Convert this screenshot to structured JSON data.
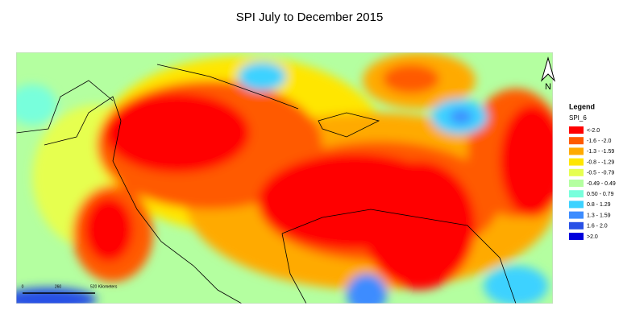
{
  "title": "SPI July to  December 2015",
  "legend": {
    "heading": "Legend",
    "field": "SPI_6",
    "items": [
      {
        "label": "<-2.0",
        "color": "#ff0000"
      },
      {
        "label": "-1.6 - -2.0",
        "color": "#ff5a00"
      },
      {
        "label": "-1.3 - -1.59",
        "color": "#ffaa00"
      },
      {
        "label": "-0.8 - -1.29",
        "color": "#ffe600"
      },
      {
        "label": "-0.5 - -0.79",
        "color": "#e6ff50"
      },
      {
        "label": "-0.49 - 0.49",
        "color": "#b4ffa0"
      },
      {
        "label": "0.50 - 0.79",
        "color": "#78ffdc"
      },
      {
        "label": "0.8 - 1.29",
        "color": "#3cd2ff"
      },
      {
        "label": "1.3 - 1.59",
        "color": "#3c8cff"
      },
      {
        "label": "1.6 - 2.0",
        "color": "#2850e6"
      },
      {
        "label": ">2.0",
        "color": "#0000dc"
      }
    ]
  },
  "scale_bar": {
    "labels": [
      "0",
      "260",
      "520 Kilometers"
    ]
  },
  "north_arrow": "N"
}
